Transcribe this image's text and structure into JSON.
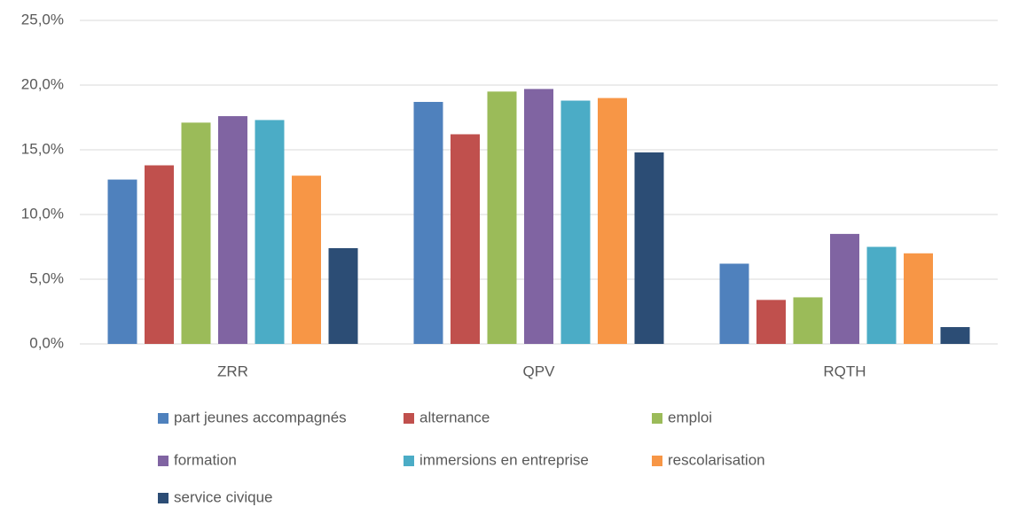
{
  "chart_data": {
    "type": "bar",
    "categories": [
      "ZRR",
      "QPV",
      "RQTH"
    ],
    "series": [
      {
        "name": "part jeunes accompagnés",
        "color": "#4f81bd",
        "values": [
          12.7,
          18.7,
          6.2
        ]
      },
      {
        "name": "alternance",
        "color": "#c0504d",
        "values": [
          13.8,
          16.2,
          3.4
        ]
      },
      {
        "name": "emploi",
        "color": "#9bbb59",
        "values": [
          17.1,
          19.5,
          3.6
        ]
      },
      {
        "name": "formation",
        "color": "#8064a2",
        "values": [
          17.6,
          19.7,
          8.5
        ]
      },
      {
        "name": "immersions en entreprise",
        "color": "#4bacc6",
        "values": [
          17.3,
          18.8,
          7.5
        ]
      },
      {
        "name": "rescolarisation",
        "color": "#f79646",
        "values": [
          13.0,
          19.0,
          7.0
        ]
      },
      {
        "name": "service civique",
        "color": "#2c4d75",
        "values": [
          7.4,
          14.8,
          1.3
        ]
      }
    ],
    "ylim": [
      0,
      25
    ],
    "yticks": [
      {
        "value": 0,
        "label": "0,0%"
      },
      {
        "value": 5,
        "label": "5,0%"
      },
      {
        "value": 10,
        "label": "10,0%"
      },
      {
        "value": 15,
        "label": "15,0%"
      },
      {
        "value": 20,
        "label": "20,0%"
      },
      {
        "value": 25,
        "label": "25,0%"
      }
    ],
    "grid": true,
    "legend": "bottom"
  }
}
